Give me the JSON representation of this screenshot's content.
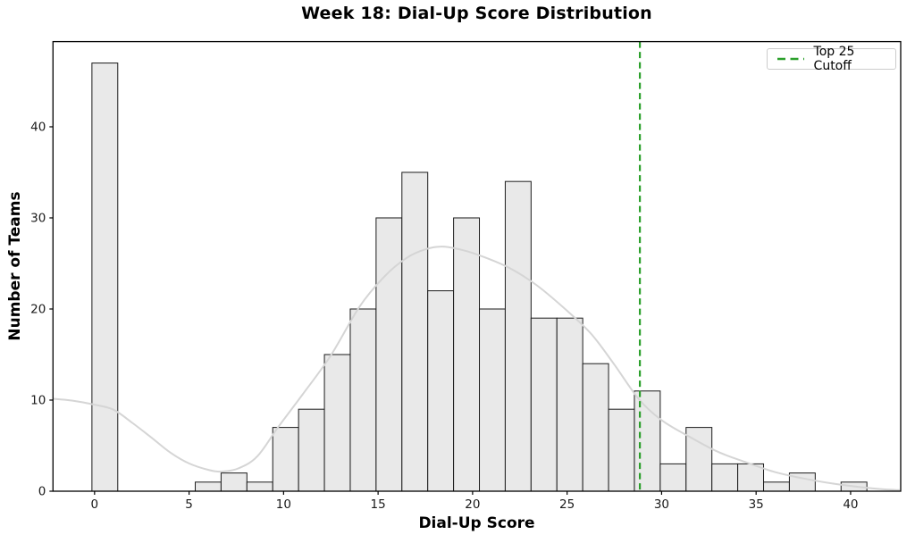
{
  "chart_data": {
    "type": "histogram",
    "title": "Week 18: Dial-Up Score Distribution",
    "xlabel": "Dial-Up Score",
    "ylabel": "Number of Teams",
    "histogram": {
      "bin_start": -0.14,
      "bin_width": 1.3667,
      "counts": [
        47,
        0,
        0,
        0,
        1,
        2,
        1,
        7,
        9,
        15,
        20,
        30,
        35,
        22,
        30,
        20,
        34,
        19,
        19,
        14,
        9,
        11,
        3,
        7,
        3,
        3,
        1,
        2,
        0,
        1
      ],
      "total_teams": 365,
      "bar_fill": "#e9e9e9",
      "bar_edge": "#1c1c1c"
    },
    "kde_curve": {
      "color": "#d5d5d5",
      "points": [
        [
          -2.2,
          10.15
        ],
        [
          -1.2,
          9.95
        ],
        [
          0,
          9.5
        ],
        [
          1,
          8.95
        ],
        [
          2,
          7.5
        ],
        [
          3,
          5.9
        ],
        [
          4,
          4.25
        ],
        [
          5,
          3.05
        ],
        [
          6,
          2.35
        ],
        [
          6.7,
          2.15
        ],
        [
          7.6,
          2.5
        ],
        [
          8.6,
          3.8
        ],
        [
          9.7,
          7.0
        ],
        [
          11,
          10.6
        ],
        [
          12.5,
          14.9
        ],
        [
          14,
          20.2
        ],
        [
          15.3,
          23.5
        ],
        [
          16.5,
          25.6
        ],
        [
          17.5,
          26.55
        ],
        [
          18.4,
          26.85
        ],
        [
          19.5,
          26.45
        ],
        [
          20.6,
          25.7
        ],
        [
          22,
          24.45
        ],
        [
          23.4,
          22.6
        ],
        [
          25,
          19.8
        ],
        [
          26.3,
          17.2
        ],
        [
          27.5,
          13.9
        ],
        [
          28.8,
          10.1
        ],
        [
          30,
          7.8
        ],
        [
          31.5,
          5.95
        ],
        [
          33,
          4.3
        ],
        [
          34.5,
          3.15
        ],
        [
          36,
          2.1
        ],
        [
          37.5,
          1.4
        ],
        [
          39,
          0.85
        ],
        [
          40.5,
          0.45
        ],
        [
          41.8,
          0.2
        ],
        [
          42.6,
          0.12
        ]
      ]
    },
    "cutoff": {
      "x": 28.85,
      "label": "Top 25 Cutoff",
      "color": "#2ca02c",
      "style": "dashed"
    },
    "xlim": [
      -2.2,
      42.65
    ],
    "ylim": [
      0,
      49.35
    ],
    "xticks": [
      0,
      5,
      10,
      15,
      20,
      25,
      30,
      35,
      40
    ],
    "yticks": [
      0,
      10,
      20,
      30,
      40
    ],
    "grid": false,
    "legend_position": "upper right",
    "axis_color": "#000000",
    "tick_label_color": "#1a1a1a"
  },
  "legend": {
    "cutoff_label": "Top 25 Cutoff"
  }
}
